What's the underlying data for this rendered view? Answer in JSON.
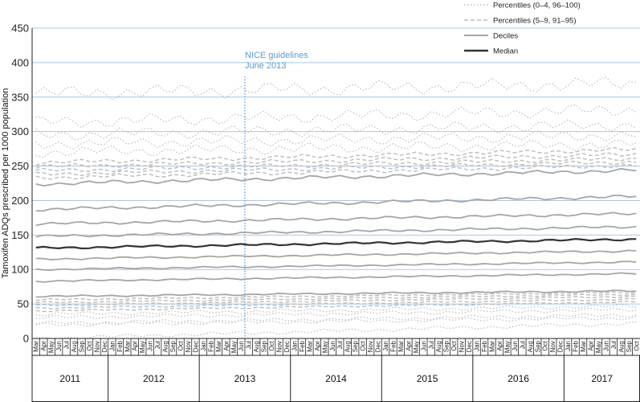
{
  "chart_data": {
    "type": "line",
    "title": "",
    "ylabel": "Tamoxifen ADQs prescribed per 1000 population",
    "xlabel": "",
    "ylim": [
      0,
      450
    ],
    "yticks": [
      0,
      50,
      100,
      150,
      200,
      250,
      300,
      350,
      400,
      450
    ],
    "grid": true,
    "start_month": "2011-03",
    "end_month": "2017-10",
    "month_labels": [
      "Jan",
      "Feb",
      "Mar",
      "Apr",
      "May",
      "Jun",
      "Jul",
      "Aug",
      "Sep",
      "Oct",
      "Nov",
      "Dec"
    ],
    "years": [
      "2011",
      "2012",
      "2013",
      "2014",
      "2015",
      "2016",
      "2017"
    ],
    "annotation": {
      "line1": "NICE guidelines",
      "line2": "June 2013",
      "month": "2013-06"
    },
    "legend": [
      {
        "label": "Percentiles (0–4, 96–100)",
        "style": "dotted"
      },
      {
        "label": "Percentiles (5–9, 91–95)",
        "style": "dashed"
      },
      {
        "label": "Deciles",
        "style": "solid-grey"
      },
      {
        "label": "Median",
        "style": "solid-dark"
      }
    ],
    "colors": {
      "grid": "#a8c8e4",
      "percentile": "#bbbbbb",
      "decile": "#a6a6a6",
      "median": "#333333",
      "annotation": "#5b9bd5"
    },
    "series": [
      {
        "name": "Percentile 100",
        "kind": "outer",
        "start": 355,
        "end": 370
      },
      {
        "name": "Percentile 99",
        "kind": "outer",
        "start": 313,
        "end": 332
      },
      {
        "name": "Percentile 98",
        "kind": "outer",
        "start": 295,
        "end": 310
      },
      {
        "name": "Percentile 97",
        "kind": "outer",
        "start": 282,
        "end": 295
      },
      {
        "name": "Percentile 96",
        "kind": "outer",
        "start": 270,
        "end": 282
      },
      {
        "name": "Percentile 95",
        "kind": "inner",
        "start": 255,
        "end": 274
      },
      {
        "name": "Percentile 94",
        "kind": "inner",
        "start": 249,
        "end": 267
      },
      {
        "name": "Percentile 93",
        "kind": "inner",
        "start": 243,
        "end": 261
      },
      {
        "name": "Percentile 92",
        "kind": "inner",
        "start": 238,
        "end": 256
      },
      {
        "name": "Percentile 91",
        "kind": "inner",
        "start": 233,
        "end": 251
      },
      {
        "name": "Decile 90",
        "kind": "decile",
        "start": 224,
        "end": 244
      },
      {
        "name": "Decile 80",
        "kind": "decile",
        "start": 187,
        "end": 206
      },
      {
        "name": "Decile 70",
        "kind": "decile",
        "start": 166,
        "end": 181
      },
      {
        "name": "Decile 60",
        "kind": "decile",
        "start": 148,
        "end": 162
      },
      {
        "name": "Median",
        "kind": "median",
        "start": 131,
        "end": 144
      },
      {
        "name": "Decile 40",
        "kind": "decile",
        "start": 115,
        "end": 127
      },
      {
        "name": "Decile 30",
        "kind": "decile",
        "start": 100,
        "end": 111
      },
      {
        "name": "Decile 20",
        "kind": "decile",
        "start": 83,
        "end": 94
      },
      {
        "name": "Decile 10",
        "kind": "decile",
        "start": 61,
        "end": 69
      },
      {
        "name": "Percentile 9",
        "kind": "inner",
        "start": 56,
        "end": 67
      },
      {
        "name": "Percentile 8",
        "kind": "inner",
        "start": 52,
        "end": 64
      },
      {
        "name": "Percentile 7",
        "kind": "inner",
        "start": 48,
        "end": 61
      },
      {
        "name": "Percentile 6",
        "kind": "inner",
        "start": 44,
        "end": 57
      },
      {
        "name": "Percentile 5",
        "kind": "inner",
        "start": 40,
        "end": 53
      },
      {
        "name": "Percentile 4",
        "kind": "outer",
        "start": 35,
        "end": 47
      },
      {
        "name": "Percentile 3",
        "kind": "outer",
        "start": 30,
        "end": 42
      },
      {
        "name": "Percentile 2",
        "kind": "outer",
        "start": 22,
        "end": 34
      },
      {
        "name": "Percentile 1",
        "kind": "outer",
        "start": 20,
        "end": 30
      },
      {
        "name": "Percentile 0",
        "kind": "outer",
        "start": 0,
        "end": 22
      }
    ]
  }
}
